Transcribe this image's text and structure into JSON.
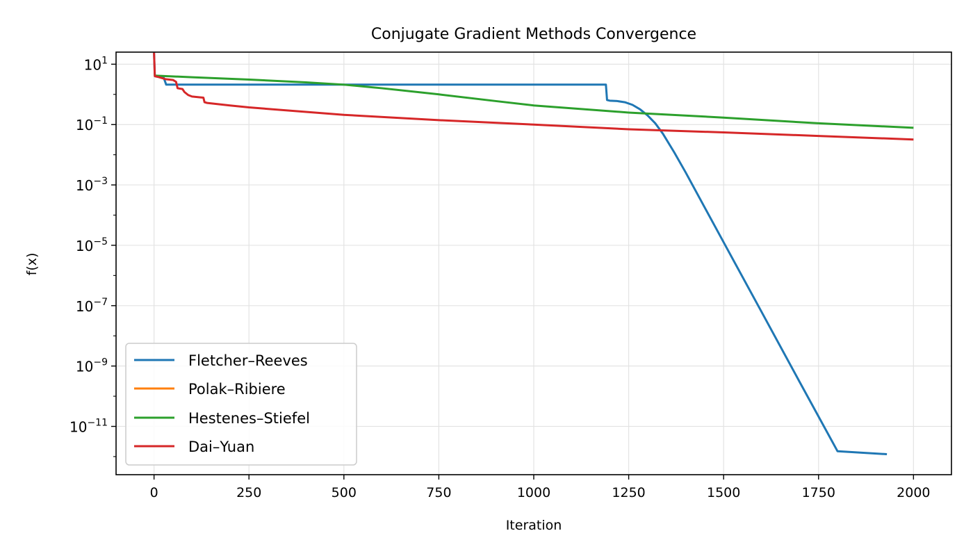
{
  "chart_data": {
    "type": "line",
    "title": "Conjugate Gradient Methods Convergence",
    "xlabel": "Iteration",
    "ylabel": "f(x)",
    "xlim": [
      -100,
      2100
    ],
    "ylim_log10": [
      -12.6,
      1.4
    ],
    "yscale": "log",
    "grid": true,
    "legend_position": "lower-left",
    "x_ticks": [
      0,
      250,
      500,
      750,
      1000,
      1250,
      1500,
      1750,
      2000
    ],
    "y_ticks": [
      {
        "exp": 1,
        "base": "10",
        "sup": "1"
      },
      {
        "exp": -1,
        "base": "10",
        "sup": "−1"
      },
      {
        "exp": -3,
        "base": "10",
        "sup": "−3"
      },
      {
        "exp": -5,
        "base": "10",
        "sup": "−5"
      },
      {
        "exp": -7,
        "base": "10",
        "sup": "−7"
      },
      {
        "exp": -9,
        "base": "10",
        "sup": "−9"
      },
      {
        "exp": -11,
        "base": "10",
        "sup": "−11"
      }
    ],
    "series": [
      {
        "name": "Fletcher–Reeves",
        "color": "#1f77b4",
        "points": [
          [
            0,
            24
          ],
          [
            2,
            4.2
          ],
          [
            10,
            3.9
          ],
          [
            25,
            3.7
          ],
          [
            32,
            2.1
          ],
          [
            100,
            2.1
          ],
          [
            500,
            2.1
          ],
          [
            1000,
            2.1
          ],
          [
            1190,
            2.1
          ],
          [
            1193,
            0.65
          ],
          [
            1200,
            0.62
          ],
          [
            1220,
            0.6
          ],
          [
            1240,
            0.55
          ],
          [
            1260,
            0.45
          ],
          [
            1280,
            0.32
          ],
          [
            1300,
            0.2
          ],
          [
            1320,
            0.11
          ],
          [
            1340,
            0.05
          ],
          [
            1370,
            0.012
          ],
          [
            1400,
            0.0026
          ],
          [
            1500,
            1.26e-05
          ],
          [
            1600,
            6.2e-08
          ],
          [
            1700,
            3e-10
          ],
          [
            1800,
            1.5e-12
          ],
          [
            1930,
            1.2e-12
          ]
        ]
      },
      {
        "name": "Polak–Ribiere",
        "color": "#ff7f0e",
        "points": []
      },
      {
        "name": "Hestenes–Stiefel",
        "color": "#2ca02c",
        "points": [
          [
            0,
            4.2
          ],
          [
            100,
            3.7
          ],
          [
            250,
            3.1
          ],
          [
            400,
            2.5
          ],
          [
            500,
            2.1
          ],
          [
            600,
            1.6
          ],
          [
            750,
            1.0
          ],
          [
            900,
            0.6
          ],
          [
            1000,
            0.43
          ],
          [
            1250,
            0.25
          ],
          [
            1500,
            0.17
          ],
          [
            1750,
            0.11
          ],
          [
            2000,
            0.078
          ]
        ]
      },
      {
        "name": "Dai–Yuan",
        "color": "#d62728",
        "points": [
          [
            0,
            24
          ],
          [
            2,
            4.0
          ],
          [
            10,
            3.8
          ],
          [
            30,
            3.2
          ],
          [
            50,
            3.0
          ],
          [
            58,
            2.6
          ],
          [
            62,
            1.6
          ],
          [
            75,
            1.5
          ],
          [
            80,
            1.2
          ],
          [
            90,
            0.95
          ],
          [
            100,
            0.85
          ],
          [
            120,
            0.8
          ],
          [
            130,
            0.78
          ],
          [
            133,
            0.55
          ],
          [
            140,
            0.52
          ],
          [
            200,
            0.43
          ],
          [
            250,
            0.37
          ],
          [
            500,
            0.21
          ],
          [
            750,
            0.14
          ],
          [
            1000,
            0.1
          ],
          [
            1250,
            0.07
          ],
          [
            1500,
            0.055
          ],
          [
            1750,
            0.042
          ],
          [
            2000,
            0.032
          ]
        ]
      }
    ]
  }
}
